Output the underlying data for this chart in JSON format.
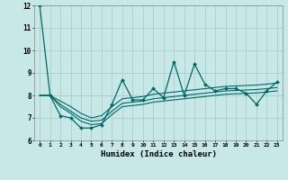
{
  "xlabel": "Humidex (Indice chaleur)",
  "x_values": [
    0,
    1,
    2,
    3,
    4,
    5,
    6,
    7,
    8,
    9,
    10,
    11,
    12,
    13,
    14,
    15,
    16,
    17,
    18,
    19,
    20,
    21,
    22,
    23
  ],
  "line_main": [
    12.0,
    8.0,
    7.1,
    7.0,
    6.55,
    6.55,
    6.7,
    7.6,
    8.7,
    7.8,
    7.8,
    8.3,
    7.9,
    9.5,
    8.0,
    9.4,
    8.5,
    8.2,
    8.3,
    8.3,
    8.1,
    7.6,
    8.2,
    8.6
  ],
  "line_upper": [
    8.0,
    8.0,
    7.75,
    7.5,
    7.2,
    7.0,
    7.1,
    7.5,
    7.85,
    7.9,
    7.95,
    8.05,
    8.1,
    8.15,
    8.2,
    8.25,
    8.3,
    8.35,
    8.4,
    8.42,
    8.44,
    8.46,
    8.5,
    8.55
  ],
  "line_mid1": [
    8.0,
    8.0,
    7.6,
    7.3,
    7.0,
    6.85,
    6.9,
    7.3,
    7.65,
    7.7,
    7.75,
    7.85,
    7.9,
    7.95,
    8.0,
    8.05,
    8.1,
    8.15,
    8.2,
    8.22,
    8.24,
    8.26,
    8.3,
    8.35
  ],
  "line_mid2": [
    8.0,
    8.0,
    7.5,
    7.2,
    6.85,
    6.7,
    6.75,
    7.15,
    7.5,
    7.55,
    7.6,
    7.7,
    7.75,
    7.8,
    7.85,
    7.9,
    7.95,
    8.0,
    8.05,
    8.07,
    8.09,
    8.11,
    8.15,
    8.2
  ],
  "bg_color": "#c8e8e8",
  "grid_color": "#aacccc",
  "line_color": "#006666",
  "ylim_min": 6,
  "ylim_max": 12,
  "yticks": [
    6,
    7,
    8,
    9,
    10,
    11,
    12
  ],
  "xlim_min": -0.5,
  "xlim_max": 23.5
}
